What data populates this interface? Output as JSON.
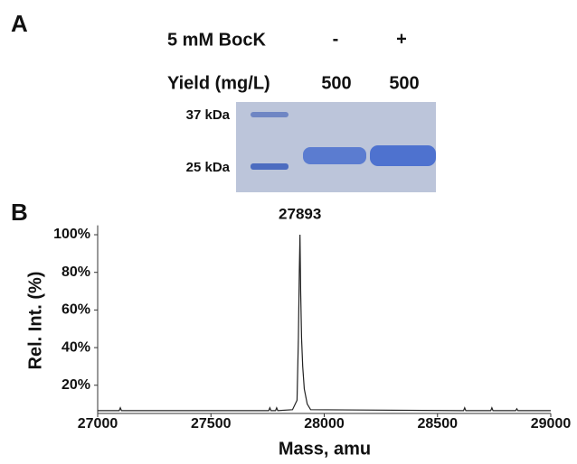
{
  "panel_a": {
    "label": "A",
    "row1_label": "5 mM BocK",
    "lanes": [
      "-",
      "+"
    ],
    "row2_label": "Yield (mg/L)",
    "yields": [
      500,
      500
    ],
    "markers": [
      "37 kDa",
      "25 kDa"
    ]
  },
  "chart_data": {
    "type": "line",
    "panel_label": "B",
    "peak_label": 27893,
    "xlabel": "Mass, amu",
    "ylabel": "Rel. Int. (%)",
    "xlim": [
      27000,
      29000
    ],
    "xticks": [
      27000,
      27500,
      28000,
      28500,
      29000
    ],
    "ylim": [
      5,
      105
    ],
    "yticks": [
      {
        "value": 20,
        "label": "20%"
      },
      {
        "value": 40,
        "label": "40%"
      },
      {
        "value": 60,
        "label": "60%"
      },
      {
        "value": 80,
        "label": "80%"
      },
      {
        "value": 100,
        "label": "100%"
      }
    ],
    "series": [
      {
        "color": "#222222",
        "x": [
          27000,
          27095,
          27100,
          27105,
          27755,
          27760,
          27765,
          27785,
          27790,
          27795,
          27860,
          27880,
          27886,
          27890,
          27893,
          27896,
          27900,
          27905,
          27912,
          27925,
          27940,
          28615,
          28620,
          28625,
          28735,
          28740,
          28745,
          28845,
          28850,
          28855,
          29000
        ],
        "values": [
          6.5,
          6.5,
          8,
          6.5,
          6.5,
          8,
          6.5,
          6.5,
          8,
          6.5,
          7,
          12,
          45,
          80,
          100,
          70,
          45,
          30,
          18,
          10,
          7,
          6.5,
          8,
          6.5,
          6.5,
          8,
          6.5,
          6.5,
          7.5,
          6.5,
          6.5
        ]
      }
    ]
  }
}
